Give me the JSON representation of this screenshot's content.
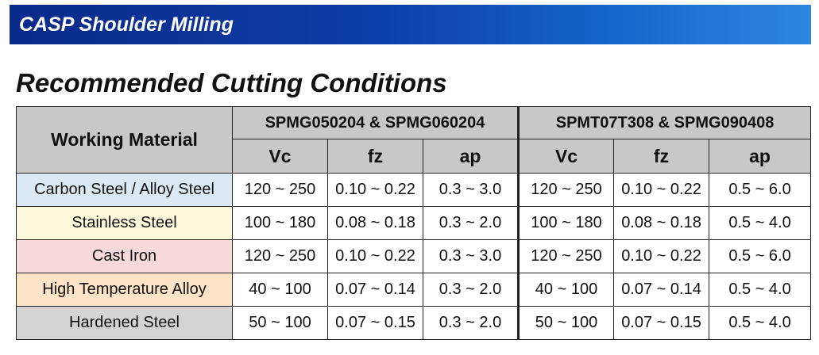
{
  "banner": {
    "title": "CASP Shoulder Milling"
  },
  "heading": "Recommended Cutting Conditions",
  "table": {
    "material_header": "Working Material",
    "groups": [
      {
        "label": "SPMG050204 & SPMG060204",
        "params": [
          "Vc",
          "fz",
          "ap"
        ]
      },
      {
        "label": "SPMT07T308 & SPMG090408",
        "params": [
          "Vc",
          "fz",
          "ap"
        ]
      }
    ],
    "rows": [
      {
        "material": "Carbon Steel / Alloy Steel",
        "color": "#dbe9f5",
        "values": [
          "120 ~ 250",
          "0.10 ~ 0.22",
          "0.3 ~ 3.0",
          "120 ~ 250",
          "0.10 ~ 0.22",
          "0.5 ~ 6.0"
        ]
      },
      {
        "material": "Stainless Steel",
        "color": "#fdf9dc",
        "values": [
          "100 ~ 180",
          "0.08 ~ 0.18",
          "0.3 ~ 2.0",
          "100 ~ 180",
          "0.08 ~ 0.18",
          "0.5 ~ 4.0"
        ]
      },
      {
        "material": "Cast Iron",
        "color": "#f7d9d9",
        "values": [
          "120 ~ 250",
          "0.10 ~ 0.22",
          "0.3 ~ 3.0",
          "120 ~ 250",
          "0.10 ~ 0.22",
          "0.5 ~ 6.0"
        ]
      },
      {
        "material": "High Temperature Alloy",
        "color": "#fde4c6",
        "values": [
          "40 ~ 100",
          "0.07 ~ 0.14",
          "0.3 ~ 2.0",
          "40 ~ 100",
          "0.07 ~ 0.14",
          "0.5 ~ 4.0"
        ]
      },
      {
        "material": "Hardened Steel",
        "color": "#d4d4d4",
        "values": [
          "50 ~ 100",
          "0.07 ~ 0.15",
          "0.3 ~ 2.0",
          "50 ~ 100",
          "0.07 ~ 0.15",
          "0.5 ~ 4.0"
        ]
      }
    ]
  }
}
